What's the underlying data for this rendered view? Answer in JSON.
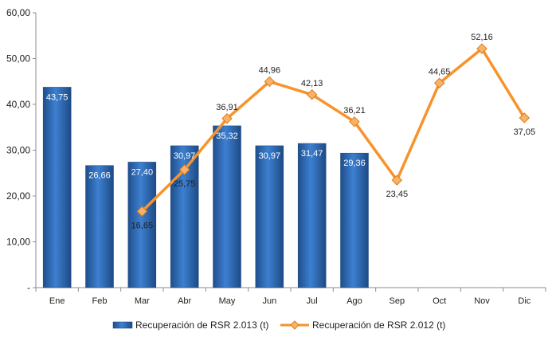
{
  "chart_data": {
    "type": "bar",
    "categories": [
      "Ene",
      "Feb",
      "Mar",
      "Abr",
      "May",
      "Jun",
      "Jul",
      "Ago",
      "Sep",
      "Oct",
      "Nov",
      "Dic"
    ],
    "ylim": [
      0,
      60
    ],
    "yticks": [
      "-",
      "10,00",
      "20,00",
      "30,00",
      "40,00",
      "50,00",
      "60,00"
    ],
    "grid": false,
    "legend_position": "bottom",
    "series": [
      {
        "name": "Recuperación de RSR 2.013 (t)",
        "type": "bar",
        "color": "#2f6fbf",
        "values": [
          43.75,
          26.66,
          27.4,
          30.97,
          35.32,
          30.97,
          31.47,
          29.36,
          null,
          null,
          null,
          null
        ],
        "labels": [
          "43,75",
          "26,66",
          "27,40",
          "30,97",
          "35,32",
          "30,97",
          "31,47",
          "29,36",
          "",
          "",
          "",
          ""
        ]
      },
      {
        "name": "Recuperación de RSR 2.012 (t)",
        "type": "line",
        "color": "#f7932b",
        "marker": "diamond",
        "values": [
          null,
          null,
          16.65,
          25.75,
          36.91,
          44.96,
          42.13,
          36.21,
          23.45,
          44.65,
          52.16,
          37.05
        ],
        "labels": [
          "",
          "",
          "16,65",
          "25,75",
          "36,91",
          "44,96",
          "42,13",
          "36,21",
          "23,45",
          "44,65",
          "52,16",
          "37,05"
        ]
      }
    ]
  }
}
